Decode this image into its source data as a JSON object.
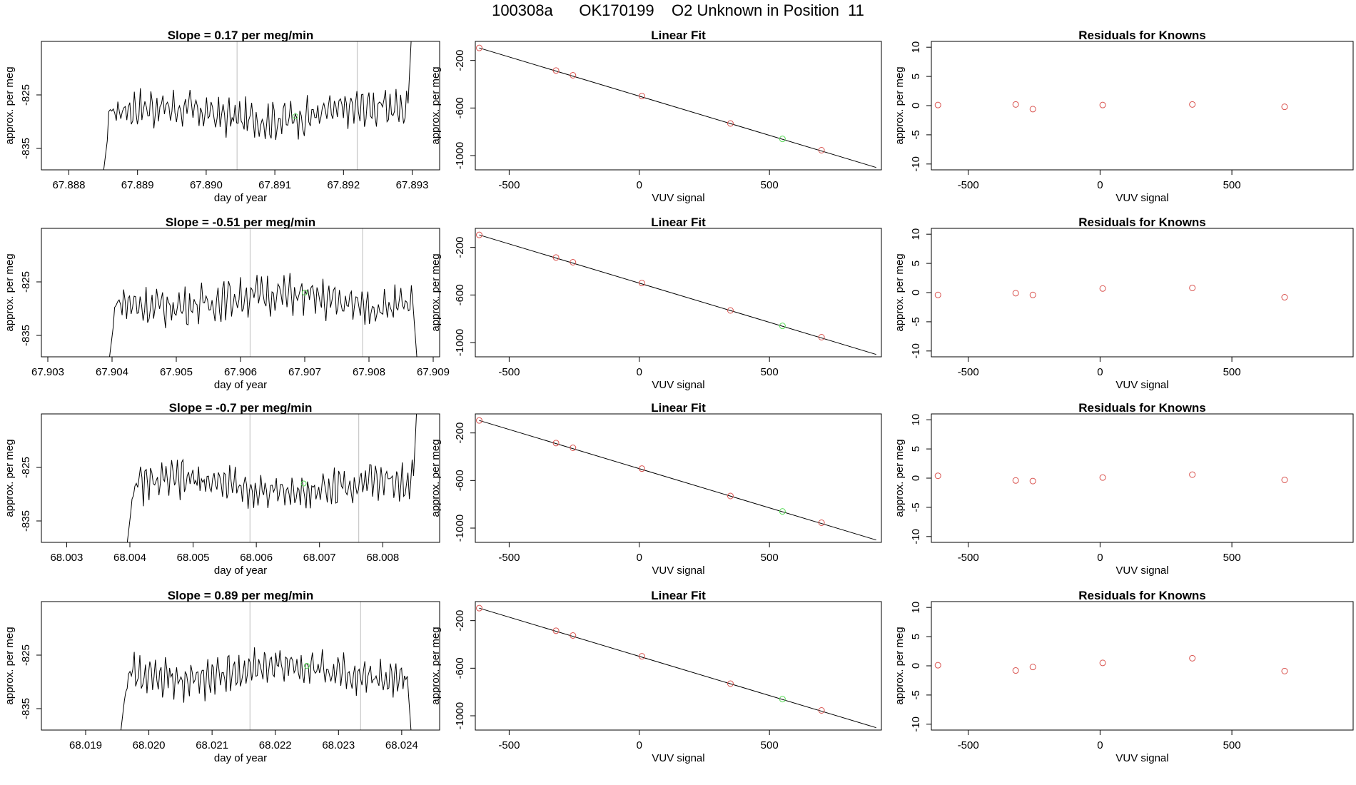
{
  "page_title": "100308a      OK170199    O2 Unknown in Position  11",
  "colors": {
    "line": "#000000",
    "known_point": "#d9534f",
    "unknown_point": "#5cdb5c",
    "vline": "#c8c8c8",
    "frame": "#000000"
  },
  "chart_data": [
    {
      "type": "line",
      "row": 0,
      "title": "Slope =  0.17  per meg/min",
      "xlabel": "day of year",
      "ylabel": "approx. per meg",
      "xlim": [
        67.8876,
        67.8934
      ],
      "ylim": [
        -839,
        -815
      ],
      "xticks": [
        "67.888",
        "67.889",
        "67.890",
        "67.891",
        "67.892",
        "67.893"
      ],
      "yticks": [
        "-825",
        "-835"
      ],
      "series_start": 67.88845,
      "series_end": 67.89305,
      "vlines": [
        67.89045,
        67.8922
      ],
      "unknown_point": [
        67.8913,
        -829
      ]
    },
    {
      "type": "scatter",
      "row": 0,
      "title": "Linear Fit",
      "xlabel": "VUV signal",
      "ylabel": "approx. per meg",
      "xlim": [
        -630,
        930
      ],
      "ylim": [
        -1120,
        -40
      ],
      "xticks": [
        "-500",
        "0",
        "500"
      ],
      "yticks": [
        "-200",
        "-600",
        "-1000"
      ],
      "fit_line": [
        [
          -615,
          -95
        ],
        [
          910,
          -1100
        ]
      ],
      "known_x": [
        -615,
        -320,
        -255,
        10,
        350,
        700
      ],
      "known_y": [
        -95,
        -285,
        -325,
        -500,
        -730,
        -955
      ],
      "unknown_point": [
        550,
        -860
      ]
    },
    {
      "type": "scatter",
      "row": 0,
      "title": "Residuals for Knowns",
      "xlabel": "VUV signal",
      "ylabel": "approx. per meg",
      "xlim": [
        -640,
        960
      ],
      "ylim": [
        -11,
        11
      ],
      "xticks": [
        "-500",
        "0",
        "500"
      ],
      "yticks": [
        "10",
        "5",
        "0",
        "-5",
        "-10"
      ],
      "x": [
        -615,
        -320,
        -255,
        10,
        350,
        700
      ],
      "y": [
        0.1,
        0.2,
        -0.6,
        0.1,
        0.2,
        -0.2
      ]
    },
    {
      "type": "line",
      "row": 1,
      "title": "Slope =  -0.51  per meg/min",
      "xlabel": "day of year",
      "ylabel": "approx. per meg",
      "xlim": [
        67.9029,
        67.9091
      ],
      "ylim": [
        -839,
        -815
      ],
      "xticks": [
        "67.903",
        "67.904",
        "67.905",
        "67.906",
        "67.907",
        "67.908",
        "67.909"
      ],
      "yticks": [
        "-825",
        "-835"
      ],
      "series_start": 67.9039,
      "series_end": 67.9088,
      "vlines": [
        67.90615,
        67.9079
      ],
      "unknown_point": [
        67.907,
        -827
      ]
    },
    {
      "type": "scatter",
      "row": 1,
      "title": "Linear Fit",
      "xlabel": "VUV signal",
      "ylabel": "approx. per meg",
      "xlim": [
        -630,
        930
      ],
      "ylim": [
        -1120,
        -40
      ],
      "xticks": [
        "-500",
        "0",
        "500"
      ],
      "yticks": [
        "-200",
        "-600",
        "-1000"
      ],
      "fit_line": [
        [
          -615,
          -95
        ],
        [
          910,
          -1100
        ]
      ],
      "known_x": [
        -615,
        -320,
        -255,
        10,
        350,
        700
      ],
      "known_y": [
        -95,
        -285,
        -325,
        -500,
        -730,
        -955
      ],
      "unknown_point": [
        550,
        -860
      ]
    },
    {
      "type": "scatter",
      "row": 1,
      "title": "Residuals for Knowns",
      "xlabel": "VUV signal",
      "ylabel": "approx. per meg",
      "xlim": [
        -640,
        960
      ],
      "ylim": [
        -11,
        11
      ],
      "xticks": [
        "-500",
        "0",
        "500"
      ],
      "yticks": [
        "10",
        "5",
        "0",
        "-5",
        "-10"
      ],
      "x": [
        -615,
        -320,
        -255,
        10,
        350,
        700
      ],
      "y": [
        -0.4,
        -0.1,
        -0.4,
        0.7,
        0.8,
        -0.8
      ]
    },
    {
      "type": "line",
      "row": 2,
      "title": "Slope =  -0.7  per meg/min",
      "xlabel": "day of year",
      "ylabel": "approx. per meg",
      "xlim": [
        68.0026,
        68.0089
      ],
      "ylim": [
        -839,
        -815
      ],
      "xticks": [
        "68.003",
        "68.004",
        "68.005",
        "68.006",
        "68.007",
        "68.008"
      ],
      "yticks": [
        "-825",
        "-835"
      ],
      "series_start": 68.0039,
      "series_end": 68.0086,
      "vlines": [
        68.0059,
        68.00762
      ],
      "unknown_point": [
        68.00675,
        -828
      ]
    },
    {
      "type": "scatter",
      "row": 2,
      "title": "Linear Fit",
      "xlabel": "VUV signal",
      "ylabel": "approx. per meg",
      "xlim": [
        -630,
        930
      ],
      "ylim": [
        -1120,
        -40
      ],
      "xticks": [
        "-500",
        "0",
        "500"
      ],
      "yticks": [
        "-200",
        "-600",
        "-1000"
      ],
      "fit_line": [
        [
          -615,
          -95
        ],
        [
          910,
          -1100
        ]
      ],
      "known_x": [
        -615,
        -320,
        -255,
        10,
        350,
        700
      ],
      "known_y": [
        -95,
        -285,
        -325,
        -500,
        -730,
        -955
      ],
      "unknown_point": [
        550,
        -860
      ]
    },
    {
      "type": "scatter",
      "row": 2,
      "title": "Residuals for Knowns",
      "xlabel": "VUV signal",
      "ylabel": "approx. per meg",
      "xlim": [
        -640,
        960
      ],
      "ylim": [
        -11,
        11
      ],
      "xticks": [
        "-500",
        "0",
        "500"
      ],
      "yticks": [
        "10",
        "5",
        "0",
        "-5",
        "-10"
      ],
      "x": [
        -615,
        -320,
        -255,
        10,
        350,
        700
      ],
      "y": [
        0.4,
        -0.4,
        -0.5,
        0.1,
        0.6,
        -0.3
      ]
    },
    {
      "type": "line",
      "row": 3,
      "title": "Slope =  0.89  per meg/min",
      "xlabel": "day of year",
      "ylabel": "approx. per meg",
      "xlim": [
        68.0183,
        68.0246
      ],
      "ylim": [
        -839,
        -815
      ],
      "xticks": [
        "68.019",
        "68.020",
        "68.021",
        "68.022",
        "68.023",
        "68.024"
      ],
      "yticks": [
        "-825",
        "-835"
      ],
      "series_start": 68.0195,
      "series_end": 68.0242,
      "vlines": [
        68.0216,
        68.02335
      ],
      "unknown_point": [
        68.0225,
        -827
      ]
    },
    {
      "type": "scatter",
      "row": 3,
      "title": "Linear Fit",
      "xlabel": "VUV signal",
      "ylabel": "approx. per meg",
      "xlim": [
        -630,
        930
      ],
      "ylim": [
        -1120,
        -40
      ],
      "xticks": [
        "-500",
        "0",
        "500"
      ],
      "yticks": [
        "-200",
        "-600",
        "-1000"
      ],
      "fit_line": [
        [
          -615,
          -95
        ],
        [
          910,
          -1100
        ]
      ],
      "known_x": [
        -615,
        -320,
        -255,
        10,
        350,
        700
      ],
      "known_y": [
        -95,
        -285,
        -325,
        -500,
        -730,
        -955
      ],
      "unknown_point": [
        550,
        -860
      ]
    },
    {
      "type": "scatter",
      "row": 3,
      "title": "Residuals for Knowns",
      "xlabel": "VUV signal",
      "ylabel": "approx. per meg",
      "xlim": [
        -640,
        960
      ],
      "ylim": [
        -11,
        11
      ],
      "xticks": [
        "-500",
        "0",
        "500"
      ],
      "yticks": [
        "10",
        "5",
        "0",
        "-5",
        "-10"
      ],
      "x": [
        -615,
        -320,
        -255,
        10,
        350,
        700
      ],
      "y": [
        0.1,
        -0.8,
        -0.2,
        0.5,
        1.3,
        -0.9
      ]
    }
  ]
}
